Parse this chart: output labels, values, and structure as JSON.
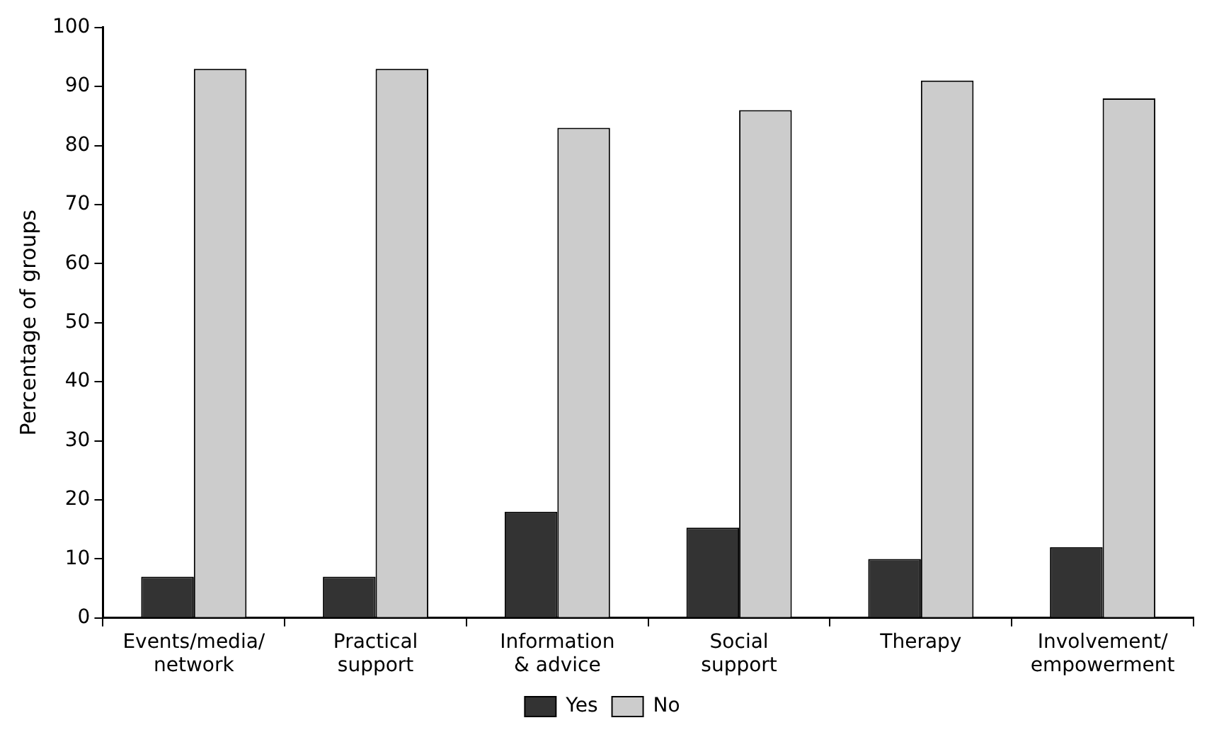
{
  "chart_data": {
    "type": "bar",
    "ylabel": "Percentage of groups",
    "categories": [
      "Events/media/\nnetwork",
      "Practical\nsupport",
      "Information\n& advice",
      "Social\nsupport",
      "Therapy",
      "Involvement/\nempowerment"
    ],
    "series": [
      {
        "name": "Yes",
        "color": "#333333",
        "values": [
          7,
          7,
          18,
          15.3,
          10,
          12
        ]
      },
      {
        "name": "No",
        "color": "#cccccc",
        "values": [
          93,
          93,
          83,
          86,
          91,
          88
        ]
      }
    ],
    "ylim": [
      0,
      100
    ],
    "yticks": [
      0,
      10,
      20,
      30,
      40,
      50,
      60,
      70,
      80,
      90,
      100
    ],
    "grid": false,
    "legend": "bottom"
  }
}
